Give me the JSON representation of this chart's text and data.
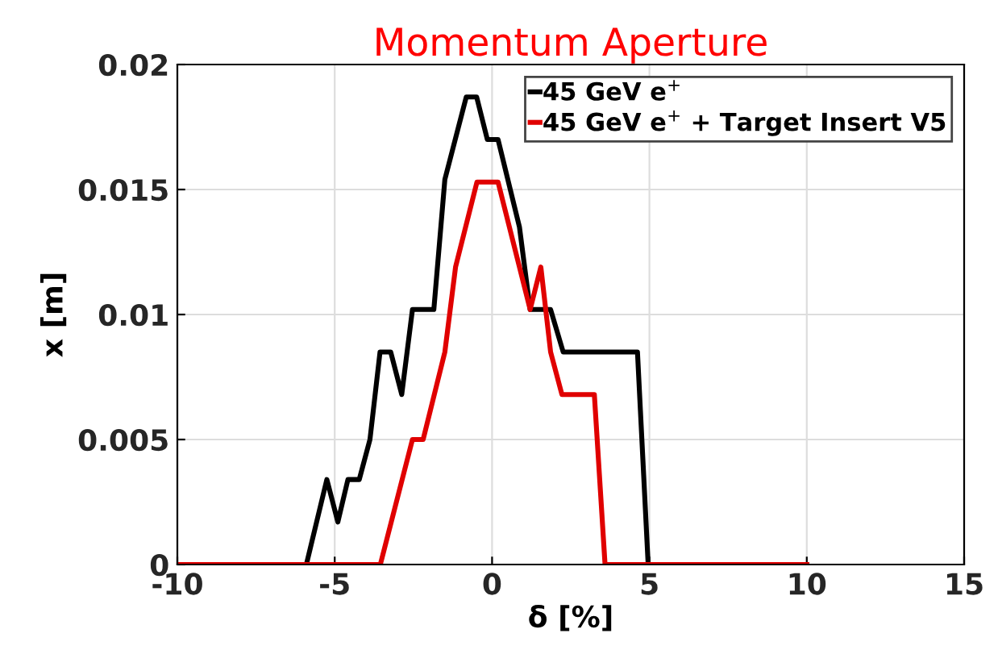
{
  "chart_data": {
    "type": "line",
    "title": "Momentum Aperture",
    "xlabel": "δ [%]",
    "ylabel": "x [m]",
    "xlim": [
      -10,
      15
    ],
    "xticks": [
      -10,
      -5,
      0,
      5,
      10,
      15
    ],
    "ylim": [
      0,
      0.02
    ],
    "yticks": [
      0,
      0.005,
      {
        "value": 0.01,
        "label": "0.01"
      },
      0.015,
      {
        "value": 0.02,
        "label": "0.02"
      }
    ],
    "grid": true,
    "legend": "top right",
    "marker": "none",
    "line_style": "solid",
    "series": [
      {
        "name": "45 GeV e$^{+}$",
        "color": "#000000",
        "x": [
          -10,
          -5.9,
          -5.25,
          -4.9,
          -4.58,
          -4.22,
          -3.88,
          -3.56,
          -3.22,
          -2.87,
          -2.53,
          -1.85,
          -1.5,
          -0.82,
          -0.49,
          -0.15,
          0.19,
          0.87,
          1.21,
          1.86,
          2.26,
          4.62,
          4.96,
          10
        ],
        "values": [
          0,
          0,
          0.0034,
          0.0017,
          0.0034,
          0.0034,
          0.005,
          0.0085,
          0.0085,
          0.0068,
          0.0102,
          0.0102,
          0.0154,
          0.0187,
          0.0187,
          0.017,
          0.017,
          0.0135,
          0.0102,
          0.0102,
          0.0085,
          0.0085,
          0,
          0
        ]
      },
      {
        "name": "45 GeV e$^{+}$ + Target Insert V5",
        "color": "#e00000",
        "x": [
          -10,
          -3.55,
          -2.53,
          -2.19,
          -1.5,
          -1.16,
          -0.48,
          0.19,
          1.21,
          1.55,
          1.86,
          2.22,
          3.25,
          3.59,
          10
        ],
        "values": [
          0,
          0,
          0.005,
          0.005,
          0.0085,
          0.0119,
          0.0153,
          0.0153,
          0.0102,
          0.0119,
          0.0085,
          0.0068,
          0.0068,
          0,
          0
        ]
      }
    ]
  }
}
